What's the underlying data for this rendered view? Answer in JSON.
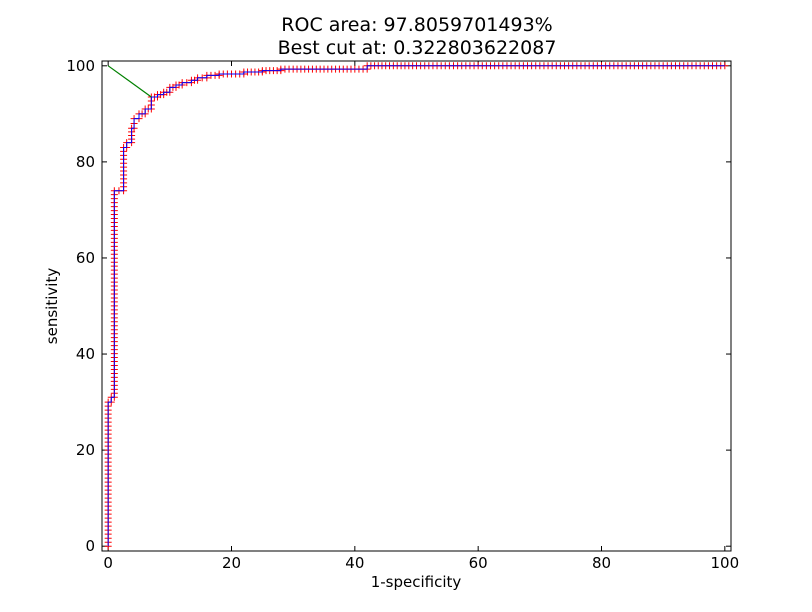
{
  "chart_data": {
    "type": "line",
    "title_lines": [
      "ROC area: 97.8059701493%",
      "Best cut at: 0.322803622087"
    ],
    "xlabel": "1-specificity",
    "ylabel": "sensitivity",
    "xlim": [
      -1,
      101
    ],
    "ylim": [
      -1,
      101
    ],
    "xticks": [
      0,
      20,
      40,
      60,
      80,
      100
    ],
    "yticks": [
      0,
      20,
      40,
      60,
      80,
      100
    ],
    "xtick_labels": [
      "0",
      "20",
      "40",
      "60",
      "80",
      "100"
    ],
    "ytick_labels": [
      "0",
      "20",
      "40",
      "60",
      "80",
      "100"
    ],
    "grid": false,
    "series": [
      {
        "role": "roc-curve",
        "color": "#0000ff",
        "marker_color": "#ff0000",
        "x": [
          0,
          0,
          0.5,
          0.5,
          1,
          1,
          2.5,
          2.5,
          3,
          3,
          3.8,
          3.8,
          4.2,
          4.2,
          5,
          5,
          6,
          6,
          7,
          7,
          8,
          8,
          9,
          9,
          10,
          10,
          11,
          11,
          12,
          12,
          13.5,
          13.5,
          14.5,
          14.5,
          16,
          16,
          18,
          18,
          20,
          22,
          22,
          25,
          25,
          28,
          28,
          30,
          35,
          40,
          42,
          42,
          45,
          50,
          60,
          70,
          80,
          90,
          100
        ],
        "y": [
          0,
          30,
          30,
          31,
          31,
          74,
          74,
          83,
          83,
          84,
          84,
          87,
          87,
          89,
          89,
          90,
          90,
          91,
          91,
          93.5,
          93.5,
          94,
          94,
          94.5,
          94.5,
          95.5,
          95.5,
          96,
          96,
          96.5,
          96.5,
          97,
          97,
          97.5,
          97.5,
          98,
          98,
          98.3,
          98.3,
          98.3,
          98.7,
          98.7,
          99,
          99,
          99.3,
          99.3,
          99.3,
          99.3,
          99.3,
          100,
          100,
          100,
          100,
          100,
          100,
          100,
          100
        ]
      },
      {
        "role": "best-cut-line",
        "color": "#008000",
        "x": [
          0,
          7
        ],
        "y": [
          100,
          93.5
        ]
      }
    ]
  }
}
